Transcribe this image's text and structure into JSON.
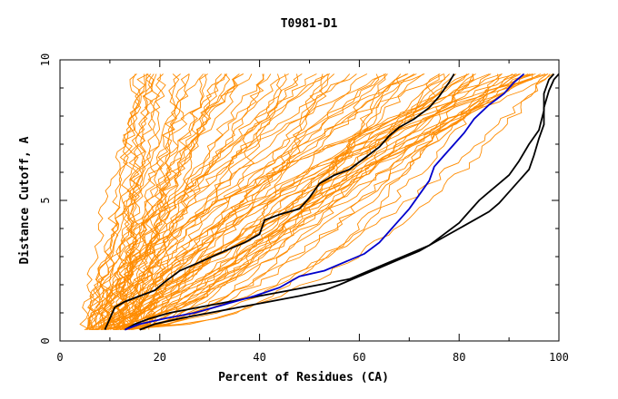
{
  "chart_data": {
    "type": "line",
    "title": "T0981-D1",
    "xlabel": "Percent of Residues (CA)",
    "ylabel": "Distance Cutoff, A",
    "xlim": [
      0,
      100
    ],
    "ylim": [
      0,
      10
    ],
    "x_ticks": [
      0,
      20,
      40,
      60,
      80,
      100
    ],
    "y_ticks": [
      0,
      5,
      10
    ],
    "grid": false,
    "legend": "none",
    "colors": {
      "background_models": "#ff8c00",
      "highlight_black": "#000000",
      "highlight_blue": "#0000cc"
    },
    "background_series_params": {
      "count": 90,
      "x_at_cutoff_0_5_range": [
        5,
        17
      ],
      "x_at_cutoff_9_5_range": [
        14,
        100
      ]
    },
    "series": [
      {
        "color": "#000000",
        "points": [
          [
            9,
            0.4
          ],
          [
            10,
            0.8
          ],
          [
            11,
            1.2
          ],
          [
            13,
            1.4
          ],
          [
            16,
            1.6
          ],
          [
            19,
            1.8
          ],
          [
            21,
            2.1
          ],
          [
            24,
            2.5
          ],
          [
            28,
            2.8
          ],
          [
            33,
            3.2
          ],
          [
            37,
            3.5
          ],
          [
            40,
            3.8
          ],
          [
            41,
            4.3
          ],
          [
            44,
            4.5
          ],
          [
            48,
            4.7
          ],
          [
            50,
            5.1
          ],
          [
            52,
            5.6
          ],
          [
            55,
            5.9
          ],
          [
            58,
            6.1
          ],
          [
            61,
            6.5
          ],
          [
            64,
            6.9
          ],
          [
            66,
            7.3
          ],
          [
            68,
            7.6
          ],
          [
            71,
            7.9
          ],
          [
            74,
            8.3
          ],
          [
            76,
            8.7
          ],
          [
            78,
            9.2
          ],
          [
            79,
            9.5
          ]
        ]
      },
      {
        "color": "#000000",
        "points": [
          [
            13,
            0.4
          ],
          [
            15,
            0.6
          ],
          [
            18,
            0.8
          ],
          [
            22,
            1.0
          ],
          [
            28,
            1.2
          ],
          [
            34,
            1.4
          ],
          [
            40,
            1.6
          ],
          [
            46,
            1.8
          ],
          [
            52,
            2.0
          ],
          [
            58,
            2.2
          ],
          [
            62,
            2.5
          ],
          [
            66,
            2.8
          ],
          [
            70,
            3.1
          ],
          [
            74,
            3.4
          ],
          [
            77,
            3.8
          ],
          [
            80,
            4.2
          ],
          [
            82,
            4.6
          ],
          [
            84,
            5.0
          ],
          [
            86,
            5.3
          ],
          [
            88,
            5.6
          ],
          [
            90,
            5.9
          ],
          [
            92,
            6.4
          ],
          [
            94,
            7.0
          ],
          [
            96,
            7.5
          ],
          [
            97,
            8.2
          ],
          [
            97,
            8.8
          ],
          [
            98,
            9.3
          ],
          [
            99,
            9.5
          ]
        ]
      },
      {
        "color": "#000000",
        "points": [
          [
            16,
            0.4
          ],
          [
            19,
            0.6
          ],
          [
            24,
            0.8
          ],
          [
            30,
            1.0
          ],
          [
            36,
            1.2
          ],
          [
            42,
            1.4
          ],
          [
            48,
            1.6
          ],
          [
            53,
            1.8
          ],
          [
            56,
            2.0
          ],
          [
            60,
            2.3
          ],
          [
            64,
            2.6
          ],
          [
            68,
            2.9
          ],
          [
            72,
            3.2
          ],
          [
            76,
            3.6
          ],
          [
            80,
            4.0
          ],
          [
            83,
            4.3
          ],
          [
            86,
            4.6
          ],
          [
            88,
            4.9
          ],
          [
            90,
            5.3
          ],
          [
            92,
            5.7
          ],
          [
            94,
            6.1
          ],
          [
            95,
            6.6
          ],
          [
            96,
            7.2
          ],
          [
            97,
            7.7
          ],
          [
            97,
            8.3
          ],
          [
            98,
            8.9
          ],
          [
            99,
            9.3
          ],
          [
            100,
            9.5
          ]
        ]
      },
      {
        "color": "#0000cc",
        "points": [
          [
            13,
            0.4
          ],
          [
            16,
            0.6
          ],
          [
            21,
            0.8
          ],
          [
            27,
            1.0
          ],
          [
            33,
            1.3
          ],
          [
            39,
            1.6
          ],
          [
            44,
            1.9
          ],
          [
            48,
            2.3
          ],
          [
            53,
            2.5
          ],
          [
            57,
            2.8
          ],
          [
            61,
            3.1
          ],
          [
            64,
            3.5
          ],
          [
            66,
            3.9
          ],
          [
            68,
            4.3
          ],
          [
            70,
            4.7
          ],
          [
            72,
            5.2
          ],
          [
            74,
            5.7
          ],
          [
            75,
            6.2
          ],
          [
            77,
            6.6
          ],
          [
            79,
            7.0
          ],
          [
            81,
            7.4
          ],
          [
            83,
            7.9
          ],
          [
            86,
            8.4
          ],
          [
            89,
            8.8
          ],
          [
            91,
            9.2
          ],
          [
            93,
            9.5
          ]
        ]
      }
    ]
  }
}
